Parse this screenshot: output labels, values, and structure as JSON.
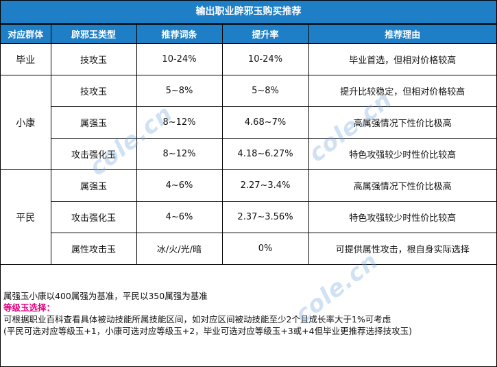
{
  "title": "输出职业辟邪玉购买推荐",
  "headers": [
    "对应群体",
    "辟邪玉类型",
    "推荐词条",
    "提升率",
    "推荐理由"
  ],
  "groups": [
    {
      "name": "毕业",
      "rows": [
        {
          "type": "技攻玉",
          "affix": "10-24%",
          "rate": "10-24%",
          "reason": "毕业首选，但相对价格较高"
        }
      ]
    },
    {
      "name": "小康",
      "rows": [
        {
          "type": "技攻玉",
          "affix": "5~8%",
          "rate": "5~8%",
          "reason": "提升比较稳定，但相对价格较高"
        },
        {
          "type": "属强玉",
          "affix": "8~12%",
          "rate": "4.68~7%",
          "reason": "高属强情况下性价比极高"
        },
        {
          "type": "攻击强化玉",
          "affix": "8~12%",
          "rate": "4.18~6.27%",
          "reason": "特色攻强较少时性价比较高"
        }
      ]
    },
    {
      "name": "平民",
      "rows": [
        {
          "type": "属强玉",
          "affix": "4~6%",
          "rate": "2.27~3.4%",
          "reason": "高属强情况下性价比极高"
        },
        {
          "type": "攻击强化玉",
          "affix": "4~6%",
          "rate": "2.37~3.56%",
          "reason": "特色攻强较少时性价比较高"
        },
        {
          "type": "属性攻击玉",
          "affix": "冰/火/光/暗",
          "rate": "0%",
          "reason": "可提供属性攻击，根自身实际选择"
        }
      ]
    }
  ],
  "notes": {
    "line1": "属强玉小康以400属强为基准，平民以350属强为基准",
    "heading": "等级玉选择：",
    "line2": "可根据职业百科查看具体被动技能所属技能区间，如对应区间被动技能至少2个且成长率大于1%可考虑",
    "line3": "(平民可选对应等级玉+1，小康可选对应等级玉+2，毕业可选对应等级玉+3或+4但毕业更推荐选择技攻玉)"
  },
  "watermark": "cole.cn",
  "colors": {
    "header_bg": "#1f7fc6",
    "highlight": "#e4007f"
  }
}
